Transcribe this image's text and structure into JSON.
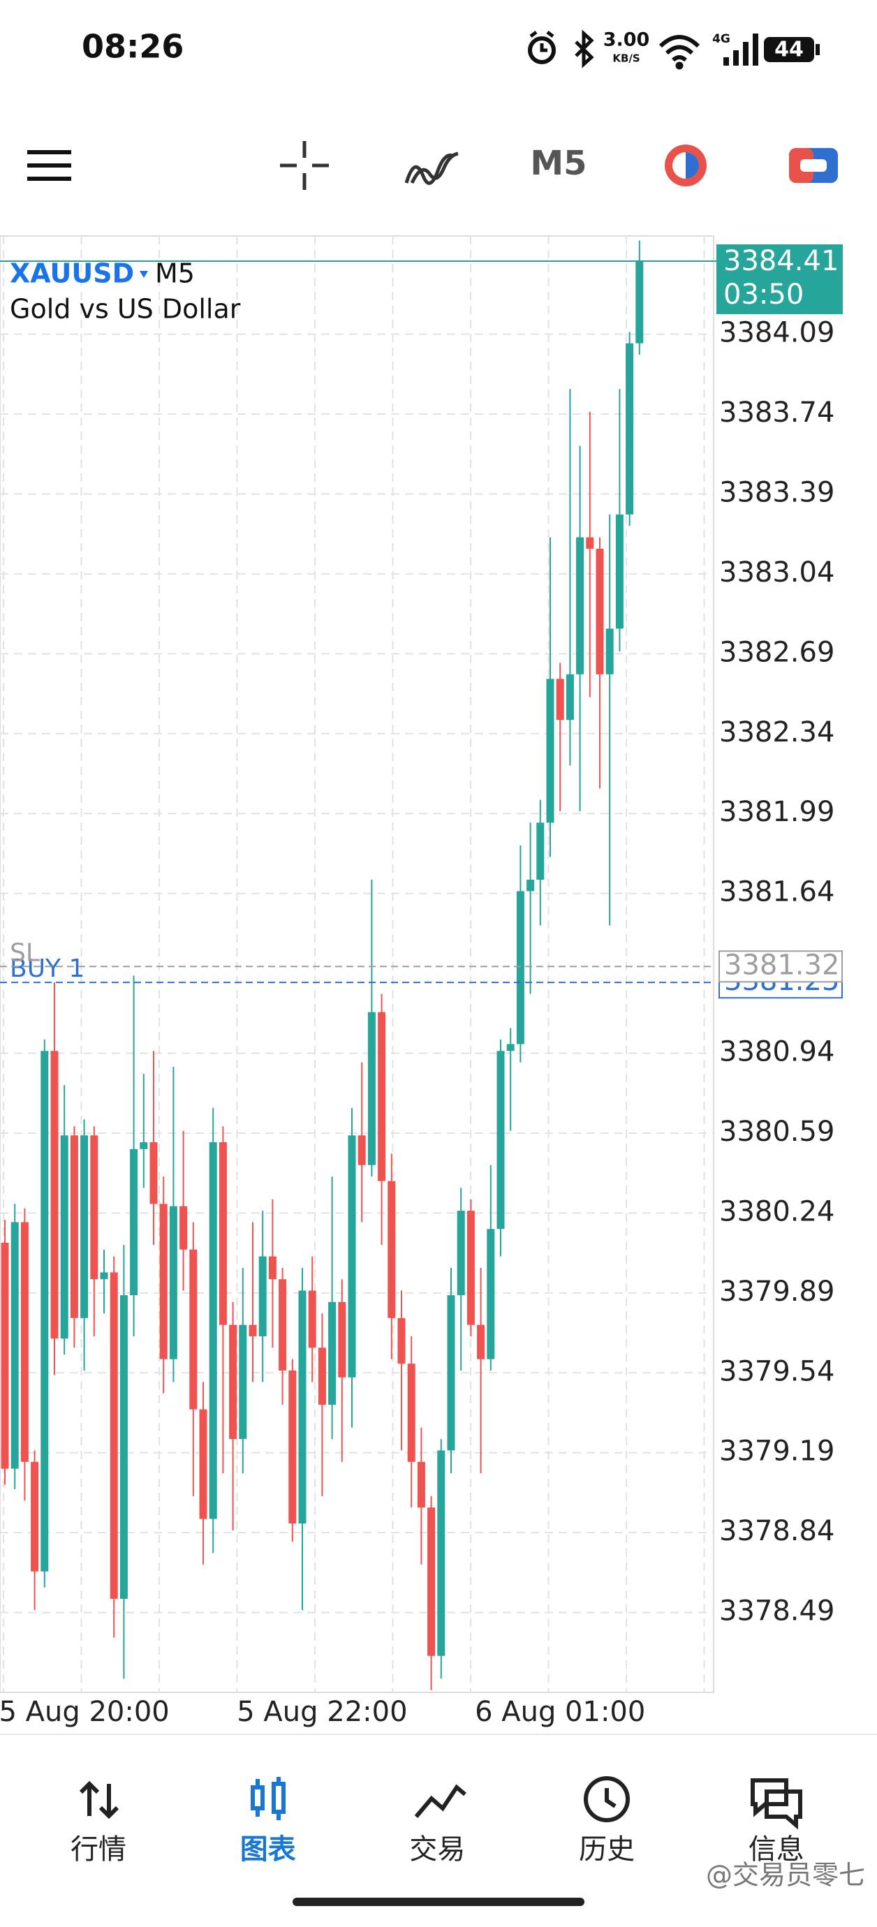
{
  "status_bar": {
    "time": "08:26",
    "network_speed": "3.00",
    "network_unit": "KB/S",
    "network_type": "4G",
    "battery": "44"
  },
  "toolbar": {
    "timeframe": "M5"
  },
  "chart_data": {
    "type": "candlestick",
    "symbol": "XAUUSD",
    "timeframe": "M5",
    "description": "Gold vs US Dollar",
    "up_color": "#26a69a",
    "down_color": "#ef5350",
    "grid": true,
    "ylim": [
      3378.14,
      3384.52
    ],
    "yticks": [
      3378.49,
      3378.84,
      3379.19,
      3379.54,
      3379.89,
      3380.24,
      3380.59,
      3380.94,
      3381.64,
      3381.99,
      3382.34,
      3382.69,
      3383.04,
      3383.39,
      3383.74,
      3384.09
    ],
    "categories": [
      null,
      null,
      null,
      null,
      null,
      null,
      null,
      null,
      "5 Aug 20:00",
      null,
      null,
      null,
      null,
      null,
      null,
      null,
      null,
      null,
      null,
      null,
      null,
      null,
      null,
      null,
      null,
      null,
      null,
      null,
      null,
      null,
      null,
      null,
      "5 Aug 22:00",
      null,
      null,
      null,
      null,
      null,
      null,
      null,
      null,
      null,
      null,
      null,
      null,
      null,
      null,
      null,
      null,
      null,
      null,
      null,
      null,
      null,
      null,
      null,
      "6 Aug 01:00",
      null,
      null,
      null,
      null,
      null,
      null,
      null,
      null
    ],
    "open": [
      3380.11,
      3379.12,
      3380.2,
      3379.15,
      3378.67,
      3380.95,
      3379.69,
      3380.58,
      3379.78,
      3380.58,
      3379.95,
      3379.98,
      3378.55,
      3379.88,
      3380.52,
      3380.55,
      3380.28,
      3379.6,
      3380.27,
      3380.08,
      3379.38,
      3378.9,
      3380.55,
      3379.75,
      3379.25,
      3379.75,
      3379.7,
      3380.05,
      3379.95,
      3379.55,
      3378.88,
      3379.9,
      3379.65,
      3379.4,
      3379.85,
      3379.52,
      3380.58,
      3380.45,
      3381.12,
      3380.38,
      3379.78,
      3379.58,
      3379.15,
      3378.95,
      3378.3,
      3379.2,
      3379.88,
      3380.25,
      3379.75,
      3379.6,
      3380.17,
      3380.95,
      3380.98,
      3381.65,
      3381.7,
      3381.95,
      3382.58,
      3382.4,
      3382.6,
      3383.2,
      3383.15,
      3382.6,
      3382.8,
      3383.3,
      3384.05
    ],
    "high": [
      3380.21,
      3380.28,
      3380.26,
      3379.2,
      3381.0,
      3381.25,
      3380.8,
      3380.62,
      3380.65,
      3380.62,
      3380.08,
      3380.05,
      3380.1,
      3381.28,
      3380.85,
      3380.95,
      3380.4,
      3380.88,
      3380.6,
      3380.2,
      3379.5,
      3380.7,
      3380.62,
      3379.85,
      3380.0,
      3380.2,
      3380.25,
      3380.3,
      3380.0,
      3379.6,
      3380.0,
      3380.05,
      3379.8,
      3380.4,
      3379.95,
      3380.7,
      3380.9,
      3381.7,
      3381.2,
      3380.5,
      3379.9,
      3379.7,
      3379.3,
      3379.0,
      3379.25,
      3380.0,
      3380.35,
      3380.3,
      3380.0,
      3380.45,
      3381.0,
      3381.05,
      3381.85,
      3381.95,
      3382.05,
      3383.2,
      3382.65,
      3383.85,
      3383.6,
      3383.75,
      3383.2,
      3383.3,
      3383.85,
      3384.1,
      3384.5
    ],
    "low": [
      3379.05,
      3379.03,
      3378.98,
      3378.5,
      3378.6,
      3379.53,
      3379.62,
      3379.65,
      3379.55,
      3379.7,
      3379.8,
      3378.38,
      3378.2,
      3379.7,
      3380.35,
      3380.1,
      3379.45,
      3379.5,
      3379.9,
      3379.0,
      3378.7,
      3378.75,
      3379.1,
      3378.85,
      3379.1,
      3379.5,
      3379.5,
      3379.65,
      3379.4,
      3378.8,
      3378.5,
      3379.5,
      3379.0,
      3379.25,
      3379.15,
      3379.3,
      3380.2,
      3380.4,
      3380.1,
      3379.6,
      3379.2,
      3378.95,
      3378.7,
      3378.15,
      3378.2,
      3379.1,
      3379.55,
      3379.7,
      3379.1,
      3379.55,
      3380.05,
      3380.6,
      3380.9,
      3381.2,
      3381.5,
      3381.8,
      3382.0,
      3382.2,
      3382.0,
      3382.5,
      3382.1,
      3381.5,
      3382.7,
      3383.25,
      3384.0
    ],
    "close": [
      3379.12,
      3380.2,
      3379.15,
      3378.67,
      3380.95,
      3379.69,
      3380.58,
      3379.78,
      3380.58,
      3379.95,
      3379.98,
      3378.55,
      3379.88,
      3380.52,
      3380.55,
      3380.28,
      3379.6,
      3380.27,
      3380.08,
      3379.38,
      3378.9,
      3380.55,
      3379.75,
      3379.25,
      3379.75,
      3379.7,
      3380.05,
      3379.95,
      3379.55,
      3378.88,
      3379.9,
      3379.65,
      3379.4,
      3379.85,
      3379.52,
      3380.58,
      3380.45,
      3381.12,
      3380.38,
      3379.78,
      3379.58,
      3379.15,
      3378.95,
      3378.3,
      3379.2,
      3379.88,
      3380.25,
      3379.75,
      3379.6,
      3380.17,
      3380.95,
      3380.98,
      3381.65,
      3381.7,
      3381.95,
      3382.58,
      3382.4,
      3382.6,
      3383.2,
      3383.15,
      3382.6,
      3382.8,
      3383.3,
      3384.05,
      3384.41
    ],
    "current_price": 3384.41,
    "current_color": "#26a69a",
    "countdown": "03:50",
    "levels": [
      {
        "name": "BUY 1",
        "value": 3381.25,
        "color": "#2f6fcf"
      },
      {
        "name": "SL",
        "value": 3381.32,
        "color": "#9e9e9e"
      }
    ]
  },
  "nav": [
    {
      "label": "行情",
      "selected": false
    },
    {
      "label": "图表",
      "selected": true
    },
    {
      "label": "交易",
      "selected": false
    },
    {
      "label": "历史",
      "selected": false
    },
    {
      "label": "信息",
      "selected": false
    }
  ],
  "watermark": "@交易员零七"
}
